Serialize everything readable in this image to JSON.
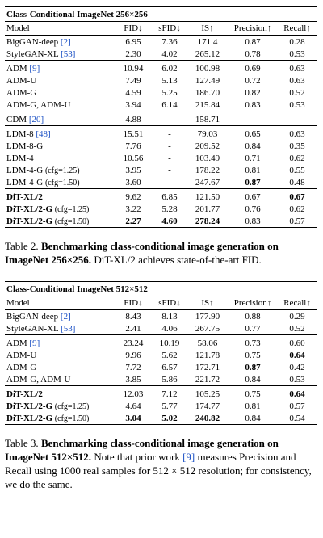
{
  "tables": [
    {
      "title": "Class-Conditional ImageNet 256×256",
      "header": [
        "Model",
        "FID↓",
        "sFID↓",
        "IS↑",
        "Precision↑",
        "Recall↑"
      ],
      "groups": [
        [
          [
            {
              "text": "BigGAN-deep",
              "cite": "[2]"
            },
            "6.95",
            "7.36",
            "171.4",
            "0.87",
            "0.28"
          ],
          [
            {
              "text": "StyleGAN-XL",
              "cite": "[53]"
            },
            "2.30",
            "4.02",
            "265.12",
            "0.78",
            "0.53"
          ]
        ],
        [
          [
            {
              "text": "ADM",
              "cite": "[9]"
            },
            "10.94",
            "6.02",
            "100.98",
            "0.69",
            "0.63"
          ],
          [
            {
              "text": "ADM-U"
            },
            "7.49",
            "5.13",
            "127.49",
            "0.72",
            "0.63"
          ],
          [
            {
              "text": "ADM-G"
            },
            "4.59",
            "5.25",
            "186.70",
            "0.82",
            "0.52"
          ],
          [
            {
              "text": "ADM-G, ADM-U"
            },
            "3.94",
            "6.14",
            "215.84",
            "0.83",
            "0.53"
          ]
        ],
        [
          [
            {
              "text": "CDM",
              "cite": "[20]"
            },
            "4.88",
            "-",
            "158.71",
            "-",
            "-"
          ]
        ],
        [
          [
            {
              "text": "LDM-8",
              "cite": "[48]"
            },
            "15.51",
            "-",
            "79.03",
            "0.65",
            "0.63"
          ],
          [
            {
              "text": "LDM-8-G"
            },
            "7.76",
            "-",
            "209.52",
            "0.84",
            "0.35"
          ],
          [
            {
              "text": "LDM-4"
            },
            "10.56",
            "-",
            "103.49",
            "0.71",
            "0.62"
          ],
          [
            {
              "text": "LDM-4-G",
              "note": "(cfg=1.25)"
            },
            "3.95",
            "-",
            "178.22",
            "0.81",
            "0.55"
          ],
          [
            {
              "text": "LDM-4-G",
              "note": "(cfg=1.50)"
            },
            "3.60",
            "-",
            "247.67",
            {
              "text": "0.87",
              "bold": true
            },
            "0.48"
          ]
        ],
        [
          [
            {
              "text": "DiT-XL/2",
              "bold": true
            },
            "9.62",
            "6.85",
            "121.50",
            "0.67",
            {
              "text": "0.67",
              "bold": true
            }
          ],
          [
            {
              "text": "DiT-XL/2-G",
              "bold": true,
              "note": "(cfg=1.25)"
            },
            "3.22",
            "5.28",
            "201.77",
            "0.76",
            "0.62"
          ],
          [
            {
              "text": "DiT-XL/2-G",
              "bold": true,
              "note": "(cfg=1.50)"
            },
            {
              "text": "2.27",
              "bold": true
            },
            {
              "text": "4.60",
              "bold": true
            },
            {
              "text": "278.24",
              "bold": true
            },
            "0.83",
            "0.57"
          ]
        ]
      ],
      "caption": [
        {
          "text": "Table 2. "
        },
        {
          "text": "Benchmarking class-conditional image generation on ImageNet 256×256.",
          "bold": true
        },
        {
          "text": " DiT-XL/2 achieves state-of-the-art FID."
        }
      ]
    },
    {
      "title": "Class-Conditional ImageNet 512×512",
      "header": [
        "Model",
        "FID↓",
        "sFID↓",
        "IS↑",
        "Precision↑",
        "Recall↑"
      ],
      "groups": [
        [
          [
            {
              "text": "BigGAN-deep",
              "cite": "[2]"
            },
            "8.43",
            "8.13",
            "177.90",
            "0.88",
            "0.29"
          ],
          [
            {
              "text": "StyleGAN-XL",
              "cite": "[53]"
            },
            "2.41",
            "4.06",
            "267.75",
            "0.77",
            "0.52"
          ]
        ],
        [
          [
            {
              "text": "ADM",
              "cite": "[9]"
            },
            "23.24",
            "10.19",
            "58.06",
            "0.73",
            "0.60"
          ],
          [
            {
              "text": "ADM-U"
            },
            "9.96",
            "5.62",
            "121.78",
            "0.75",
            {
              "text": "0.64",
              "bold": true
            }
          ],
          [
            {
              "text": "ADM-G"
            },
            "7.72",
            "6.57",
            "172.71",
            {
              "text": "0.87",
              "bold": true
            },
            "0.42"
          ],
          [
            {
              "text": "ADM-G, ADM-U"
            },
            "3.85",
            "5.86",
            "221.72",
            "0.84",
            "0.53"
          ]
        ],
        [
          [
            {
              "text": "DiT-XL/2",
              "bold": true
            },
            "12.03",
            "7.12",
            "105.25",
            "0.75",
            {
              "text": "0.64",
              "bold": true
            }
          ],
          [
            {
              "text": "DiT-XL/2-G",
              "bold": true,
              "note": "(cfg=1.25)"
            },
            "4.64",
            "5.77",
            "174.77",
            "0.81",
            "0.57"
          ],
          [
            {
              "text": "DiT-XL/2-G",
              "bold": true,
              "note": "(cfg=1.50)"
            },
            {
              "text": "3.04",
              "bold": true
            },
            {
              "text": "5.02",
              "bold": true
            },
            {
              "text": "240.82",
              "bold": true
            },
            "0.84",
            "0.54"
          ]
        ]
      ],
      "caption": [
        {
          "text": "Table 3. "
        },
        {
          "text": "Benchmarking class-conditional image generation on ImageNet 512×512.",
          "bold": true
        },
        {
          "text": " Note that prior work "
        },
        {
          "text": "[9]",
          "cite": true
        },
        {
          "text": " measures Precision and Recall using 1000 real samples for 512 × 512 resolution; for consistency, we do the same."
        }
      ]
    }
  ]
}
